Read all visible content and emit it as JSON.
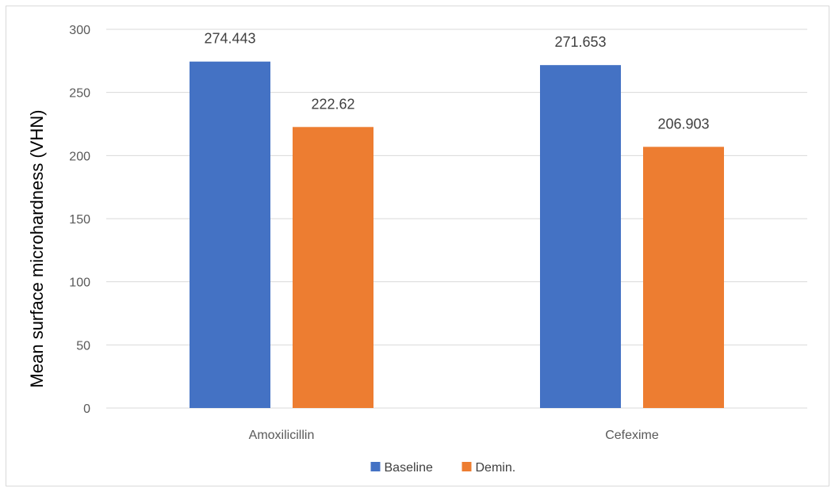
{
  "chart_data": {
    "type": "bar",
    "title": "",
    "xlabel": "",
    "ylabel": "Mean surface microhardness (VHN)",
    "categories": [
      "Amoxilicillin",
      "Cefexime"
    ],
    "series": [
      {
        "name": "Baseline",
        "values": [
          274.443,
          271.653
        ],
        "color": "#4472C4"
      },
      {
        "name": "Demin.",
        "values": [
          222.62,
          206.903
        ],
        "color": "#ED7D31"
      }
    ],
    "ylim": [
      0,
      300
    ],
    "yticks": [
      0,
      50,
      100,
      150,
      200,
      250,
      300
    ],
    "grid": true,
    "legend_position": "bottom",
    "data_labels": [
      "274.443",
      "222.62",
      "271.653",
      "206.903"
    ]
  }
}
